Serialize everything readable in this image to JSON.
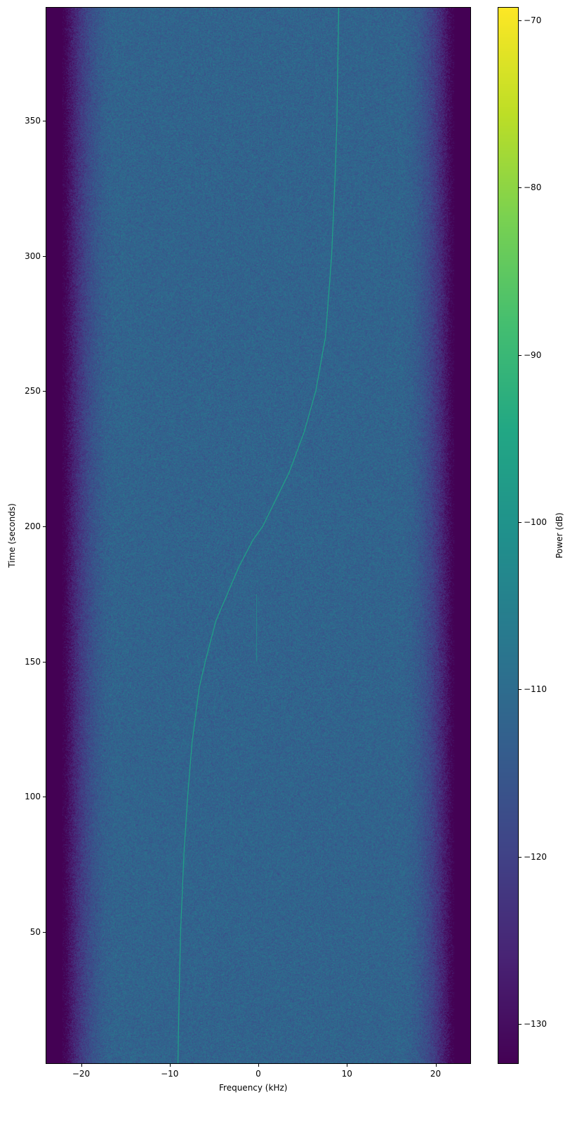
{
  "chart_data": {
    "type": "heatmap",
    "xlabel": "Frequency (kHz)",
    "ylabel": "Time (seconds)",
    "colorbar_label": "Power (dB)",
    "colormap": "viridis",
    "xlim": [
      -24,
      24
    ],
    "ylim": [
      1.2,
      392
    ],
    "clim": [
      -132.4,
      -69.2
    ],
    "xticks": [
      -20,
      -10,
      0,
      10,
      20
    ],
    "xtick_labels": [
      "−20",
      "−10",
      "0",
      "10",
      "20"
    ],
    "yticks": [
      50,
      100,
      150,
      200,
      250,
      300,
      350
    ],
    "ytick_labels": [
      "50",
      "100",
      "150",
      "200",
      "250",
      "300",
      "350"
    ],
    "cticks": [
      -70,
      -80,
      -90,
      -100,
      -110,
      -120,
      -130
    ],
    "ctick_labels": [
      "−70",
      "−80",
      "−90",
      "−100",
      "−110",
      "−120",
      "−130"
    ],
    "noise_floor_db": -112,
    "passband_edge_khz": 22,
    "out_of_band_db": -133,
    "signal_trace": {
      "time_s": [
        1,
        20,
        50,
        80,
        100,
        120,
        140,
        150,
        165,
        175,
        185,
        195,
        200,
        210,
        220,
        235,
        250,
        270,
        300,
        330,
        350,
        392
      ],
      "freq_khz": [
        -9.1,
        -9.0,
        -8.8,
        -8.4,
        -8.0,
        -7.5,
        -6.7,
        -6.0,
        -4.8,
        -3.5,
        -2.2,
        -0.6,
        0.5,
        2.0,
        3.5,
        5.2,
        6.5,
        7.6,
        8.3,
        8.7,
        8.9,
        9.1
      ],
      "power_db": -97
    },
    "weak_artifact": {
      "freq_khz": -0.2,
      "time_s": [
        150,
        175
      ],
      "power_db": -100
    }
  }
}
